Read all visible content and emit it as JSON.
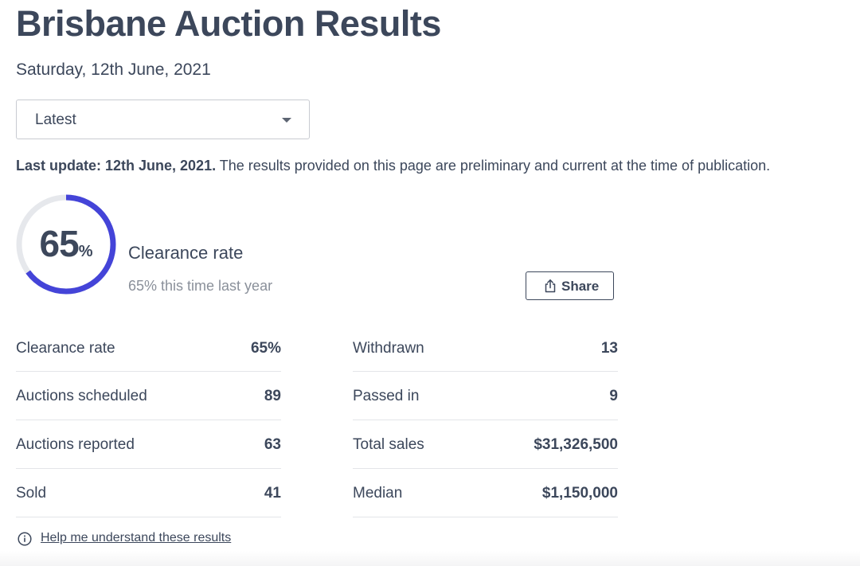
{
  "page": {
    "title": "Brisbane Auction Results",
    "date": "Saturday, 12th June, 2021"
  },
  "filter": {
    "selected": "Latest"
  },
  "update": {
    "bold": "Last update: 12th June, 2021.",
    "note": " The results provided on this page are preliminary and current at the time of publication."
  },
  "clearance": {
    "value": "65",
    "unit": "%",
    "fraction": 0.65,
    "label": "Clearance rate",
    "last_year": "65% this time last year",
    "accent_color": "#4444d8",
    "track_color": "#e6e8ec"
  },
  "share": {
    "label": "Share",
    "icon": "share-icon"
  },
  "stats_left": [
    {
      "label": "Clearance rate",
      "value": "65%"
    },
    {
      "label": "Auctions scheduled",
      "value": "89"
    },
    {
      "label": "Auctions reported",
      "value": "63"
    },
    {
      "label": "Sold",
      "value": "41"
    }
  ],
  "stats_right": [
    {
      "label": "Withdrawn",
      "value": "13"
    },
    {
      "label": "Passed in",
      "value": "9"
    },
    {
      "label": "Total sales",
      "value": "$31,326,500"
    },
    {
      "label": "Median",
      "value": "$1,150,000"
    }
  ],
  "help": {
    "label": "Help me understand these results",
    "icon": "info-icon"
  }
}
